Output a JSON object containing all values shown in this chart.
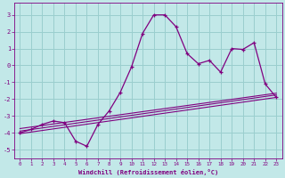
{
  "xlabel": "Windchill (Refroidissement éolien,°C)",
  "xlim": [
    -0.5,
    23.5
  ],
  "ylim": [
    -5.5,
    3.7
  ],
  "yticks": [
    -5,
    -4,
    -3,
    -2,
    -1,
    0,
    1,
    2,
    3
  ],
  "xticks": [
    0,
    1,
    2,
    3,
    4,
    5,
    6,
    7,
    8,
    9,
    10,
    11,
    12,
    13,
    14,
    15,
    16,
    17,
    18,
    19,
    20,
    21,
    22,
    23
  ],
  "bg_color": "#c2e8e8",
  "grid_color": "#9acece",
  "line_color": "#800080",
  "curve1_x": [
    0,
    1,
    2,
    3,
    4,
    5,
    6,
    7,
    8,
    9,
    10,
    11,
    12,
    13,
    14,
    15,
    16,
    17,
    18,
    19,
    20,
    21,
    22,
    23
  ],
  "curve1_y": [
    -4.0,
    -3.8,
    -3.5,
    -3.3,
    -3.4,
    -4.5,
    -4.8,
    -3.5,
    -2.7,
    -1.6,
    -0.1,
    1.9,
    3.0,
    3.0,
    2.3,
    0.7,
    0.1,
    0.3,
    -0.4,
    1.0,
    0.95,
    1.35,
    -1.1,
    -1.9
  ],
  "curve2_x": [
    0,
    23
  ],
  "curve2_y": [
    -3.9,
    -1.75
  ],
  "curve3_x": [
    0,
    23
  ],
  "curve3_y": [
    -4.05,
    -1.9
  ],
  "curve4_x": [
    0,
    23
  ],
  "curve4_y": [
    -3.75,
    -1.65
  ]
}
